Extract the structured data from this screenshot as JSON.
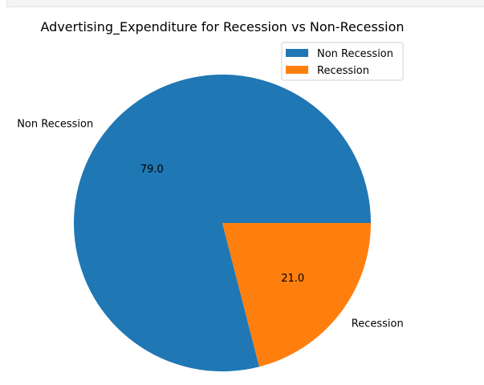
{
  "chart_data": {
    "type": "pie",
    "title": "Advertising_Expenditure for Recession vs Non-Recession",
    "slices": [
      {
        "label": "Non Recession",
        "value": 79.0,
        "pct_text": "79.0",
        "color": "#1f77b4"
      },
      {
        "label": "Recession",
        "value": 21.0,
        "pct_text": "21.0",
        "color": "#ff7f0e"
      }
    ],
    "legend": {
      "placement": "upper-right",
      "items": [
        "Non Recession",
        "Recession"
      ]
    }
  }
}
